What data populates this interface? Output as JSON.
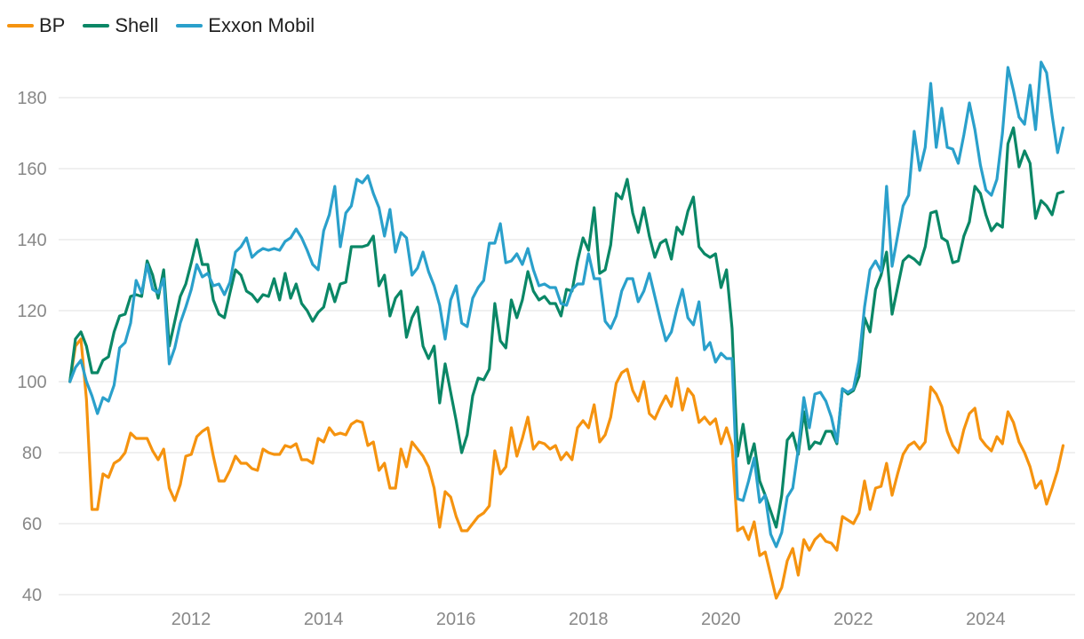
{
  "chart_data": {
    "type": "line",
    "title": "",
    "xlabel": "",
    "ylabel": "",
    "x_start": 2010.17,
    "x_step": 0.08333,
    "xlim": [
      2010.0,
      2025.35
    ],
    "ylim": [
      40,
      190
    ],
    "yticks": [
      40,
      60,
      80,
      100,
      120,
      140,
      160,
      180
    ],
    "xticks": [
      2012,
      2014,
      2016,
      2018,
      2020,
      2022,
      2024
    ],
    "grid": true,
    "legend_position": "top-left",
    "series": [
      {
        "name": "BP",
        "color": "#F5930F",
        "values": [
          100,
          110,
          112,
          95,
          64,
          64,
          74,
          73,
          77,
          78,
          80,
          85.5,
          84,
          84,
          84,
          80.5,
          78,
          81,
          70,
          66.5,
          71,
          79,
          79.5,
          84.5,
          86,
          87,
          79,
          72,
          72,
          75,
          79,
          77,
          77,
          75.5,
          75,
          81,
          80,
          79.5,
          79.5,
          82,
          81.5,
          82.5,
          78,
          78,
          77,
          84,
          83,
          87,
          85,
          85.5,
          85,
          88,
          89,
          88.5,
          82,
          83,
          75,
          77,
          70,
          70,
          81,
          76,
          83,
          81,
          79,
          76,
          70,
          59,
          69,
          67.5,
          62,
          58,
          58,
          60,
          62,
          63,
          65,
          80.5,
          74,
          76,
          87,
          79,
          84,
          90,
          81,
          83,
          82.5,
          81,
          82,
          78,
          80,
          78,
          87,
          89,
          87,
          93.5,
          83,
          85,
          90,
          99.5,
          102.5,
          103.5,
          97.5,
          94.5,
          100,
          91,
          89.5,
          93,
          96,
          93,
          101,
          92,
          98,
          96,
          88.5,
          90,
          88,
          89.5,
          82.5,
          87,
          82,
          58,
          59,
          55.5,
          60.5,
          51,
          52,
          45.5,
          39,
          42,
          49.5,
          53,
          45.5,
          55.5,
          52.5,
          55.5,
          57,
          55,
          54.5,
          52.5,
          62,
          61,
          60,
          63,
          72,
          64,
          70,
          70.5,
          77,
          68,
          74,
          79.5,
          82,
          83,
          81,
          83,
          98.5,
          96.5,
          93,
          86,
          82,
          80,
          86.5,
          91,
          92.5,
          84,
          82,
          80.5,
          84.5,
          82.5,
          91.5,
          88.5,
          83,
          80,
          76,
          70,
          72,
          65.5,
          70,
          75,
          82
        ]
      },
      {
        "name": "Shell",
        "color": "#0A8766",
        "values": [
          100,
          112,
          114,
          110,
          102.5,
          102.5,
          106,
          107,
          114,
          118.5,
          119,
          124,
          124.5,
          124,
          134,
          130,
          123.5,
          131.5,
          110,
          117,
          124,
          127.5,
          133.5,
          140,
          133,
          133,
          123,
          119,
          118,
          125,
          131.5,
          130,
          125.5,
          124.5,
          122.5,
          124.5,
          124,
          129,
          123,
          130.5,
          123.5,
          127.5,
          122,
          120,
          117,
          119.5,
          121,
          127.5,
          122.5,
          127.5,
          128,
          138,
          138,
          138,
          138.5,
          141,
          127,
          130,
          118.5,
          123.5,
          125.5,
          112.5,
          118,
          121,
          110,
          106.5,
          110,
          94,
          105,
          97,
          89,
          80,
          85,
          96,
          101,
          100.5,
          103.5,
          122,
          111.5,
          109.5,
          123,
          118,
          123,
          131,
          125.5,
          123,
          124,
          122,
          122,
          118.5,
          126,
          125.5,
          134,
          140.5,
          137,
          149,
          130.5,
          131.5,
          138.5,
          153,
          151.5,
          157,
          147.5,
          142,
          149,
          141,
          135,
          139,
          140,
          134.5,
          143.5,
          141.5,
          148,
          152,
          138,
          136,
          135,
          136,
          126.5,
          131.5,
          115,
          79,
          88,
          77,
          82.5,
          72,
          68,
          63.5,
          59,
          68,
          83.5,
          85.5,
          79.5,
          91.5,
          81,
          83,
          82.5,
          86,
          86,
          82.5,
          98,
          96.5,
          97.5,
          101.5,
          118,
          114,
          126,
          130,
          136.5,
          119,
          126.5,
          134,
          135.5,
          134.5,
          133,
          138,
          147.5,
          148,
          140.5,
          139.5,
          133.5,
          134,
          141,
          145,
          155,
          153,
          147,
          142.5,
          144.5,
          143.5,
          167,
          171.5,
          160.5,
          165,
          161.5,
          146,
          151,
          149.5,
          147,
          153,
          153.5
        ]
      },
      {
        "name": "Exxon Mobil",
        "color": "#2AA0CB",
        "values": [
          100,
          104,
          106,
          100,
          96,
          91,
          95.5,
          94.5,
          99,
          109.5,
          111,
          116.5,
          128.5,
          125,
          133,
          126,
          125,
          129,
          105,
          109.5,
          116.5,
          121,
          126,
          133,
          129.5,
          130.5,
          127,
          127.5,
          124.5,
          128,
          136.5,
          138,
          140.5,
          135,
          136.5,
          137.5,
          137,
          137.5,
          137,
          139.5,
          140.5,
          143,
          140.5,
          137,
          133,
          131.5,
          142.5,
          147,
          155,
          138,
          147.5,
          149.5,
          157,
          156,
          158,
          153,
          149,
          141,
          148.5,
          136.5,
          142,
          140.5,
          130,
          132,
          136.5,
          131,
          127,
          121.5,
          112,
          123,
          127,
          116.5,
          115.5,
          123.5,
          126.5,
          128.5,
          139,
          139,
          144.5,
          133.5,
          134,
          136,
          133,
          137.5,
          131.5,
          127,
          127.5,
          126.5,
          126.5,
          122,
          121.5,
          126,
          127.5,
          127.5,
          136,
          129,
          129,
          117,
          115,
          118.5,
          125.5,
          129,
          129,
          122.5,
          125.5,
          130.5,
          124,
          117.5,
          111.5,
          114,
          120.5,
          126,
          118,
          116,
          122.5,
          109,
          111,
          105.5,
          108,
          106.5,
          106.5,
          67,
          66.5,
          72,
          78.5,
          66,
          68,
          57,
          53.5,
          57.5,
          67.5,
          70,
          81,
          95.5,
          87,
          96.5,
          97,
          94.5,
          90,
          83,
          98,
          97,
          98,
          106,
          121,
          131.5,
          134,
          131,
          155,
          132.5,
          141,
          149.5,
          152.5,
          170.5,
          159.5,
          166,
          184,
          166,
          177,
          166,
          165.5,
          161.5,
          169.5,
          178.5,
          171,
          161,
          154,
          152.5,
          157,
          170,
          188.5,
          182,
          174.5,
          172.5,
          183.5,
          171,
          190,
          187,
          175,
          164.5,
          171.5
        ]
      }
    ]
  }
}
